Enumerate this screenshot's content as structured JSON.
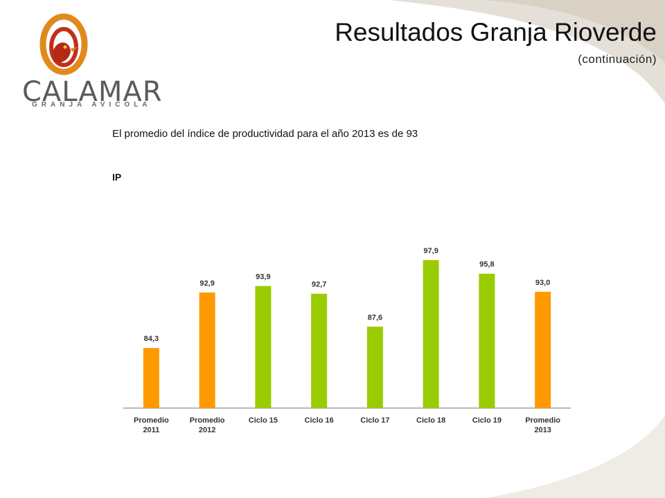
{
  "header": {
    "title": "Resultados Granja Rioverde",
    "subtitle": "(continuación)"
  },
  "logo": {
    "name": "CALAMAR",
    "tagline": "GRANJA AVICOLA"
  },
  "statement": "El promedio del índice de productividad para el año 2013 es de 93",
  "chart_label": "IP",
  "colors": {
    "orange": "#FF9900",
    "green": "#99CC00",
    "axis": "#8c8c8c",
    "swoosh": "#d9d3c7"
  },
  "chart_data": {
    "type": "bar",
    "title": "",
    "xlabel": "",
    "ylabel": "",
    "ylim": [
      75,
      100
    ],
    "grid": false,
    "categories": [
      [
        "Promedio",
        "2011"
      ],
      [
        "Promedio",
        "2012"
      ],
      [
        "Ciclo 15"
      ],
      [
        "Ciclo 16"
      ],
      [
        "Ciclo 17"
      ],
      [
        "Ciclo 18"
      ],
      [
        "Ciclo 19"
      ],
      [
        "Promedio",
        "2013"
      ]
    ],
    "values": [
      84.3,
      92.9,
      93.9,
      92.7,
      87.6,
      97.9,
      95.8,
      93.0
    ],
    "value_labels": [
      "84,3",
      "92,9",
      "93,9",
      "92,7",
      "87,6",
      "97,9",
      "95,8",
      "93,0"
    ],
    "bar_colors": [
      "orange",
      "orange",
      "green",
      "green",
      "green",
      "green",
      "green",
      "orange"
    ]
  }
}
